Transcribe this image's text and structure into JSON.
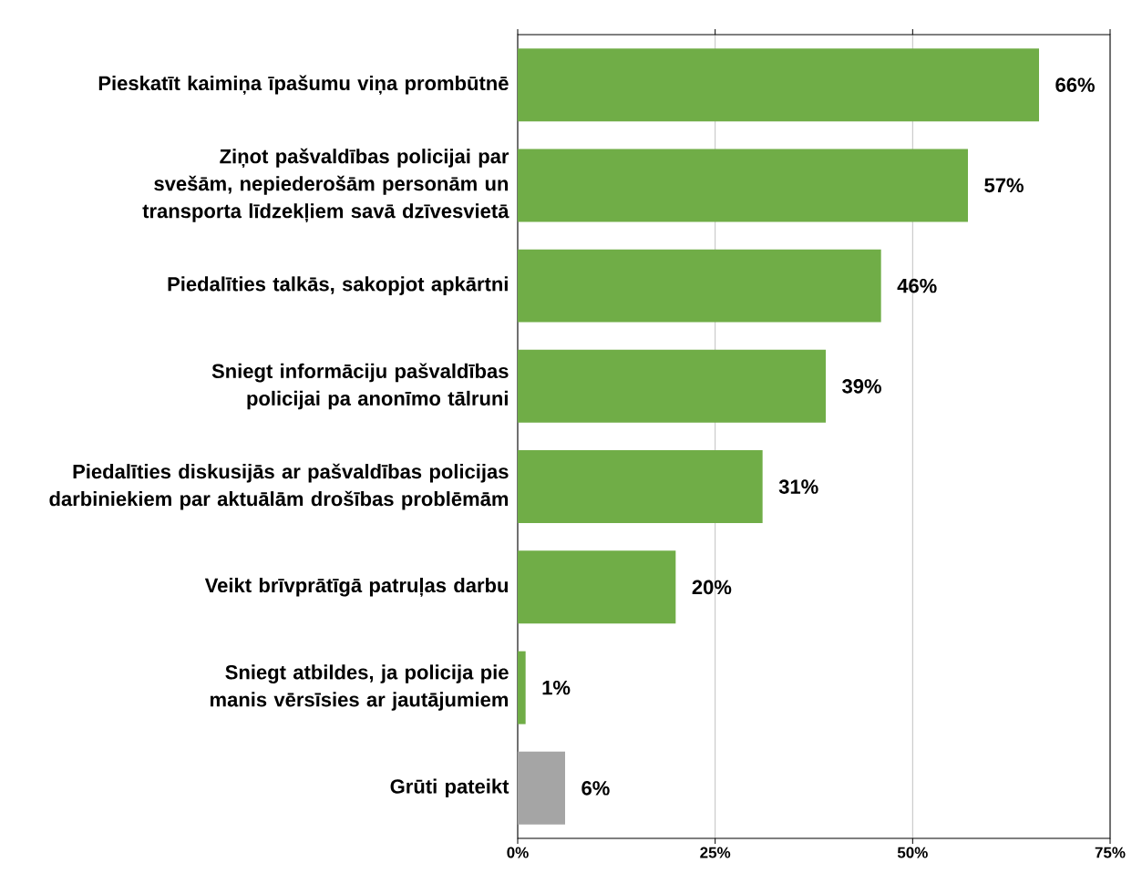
{
  "chart_data": {
    "type": "bar",
    "orientation": "horizontal",
    "categories": [
      "Pieskatīt kaimiņa īpašumu viņa prombūtnē",
      "Ziņot pašvaldības policijai par svešām, nepiederošām personām un transporta līdzekļiem savā dzīvesvietā",
      "Piedalīties talkās, sakopjot apkārtni",
      "Sniegt informāciju pašvaldības policijai pa anonīmo tālruni",
      "Piedalīties diskusijās ar pašvaldības policijas darbiniekiem par aktuālām drošības problēmām",
      "Veikt brīvprātīgā patruļas darbu",
      "Sniegt atbildes, ja policija pie manis vērsīsies ar jautājumiem",
      "Grūti pateikt"
    ],
    "values": [
      66,
      57,
      46,
      39,
      31,
      20,
      1,
      6
    ],
    "colors": [
      "#70ad47",
      "#70ad47",
      "#70ad47",
      "#70ad47",
      "#70ad47",
      "#70ad47",
      "#70ad47",
      "#a5a5a5"
    ],
    "value_labels": [
      "66%",
      "57%",
      "46%",
      "39%",
      "31%",
      "20%",
      "1%",
      "6%"
    ],
    "xlim": [
      0,
      75
    ],
    "xticks": [
      {
        "value": 0,
        "label": "0%"
      },
      {
        "value": 25,
        "label": "25%"
      },
      {
        "value": 50,
        "label": "50%"
      },
      {
        "value": 75,
        "label": "75%"
      }
    ],
    "grid": "x"
  }
}
